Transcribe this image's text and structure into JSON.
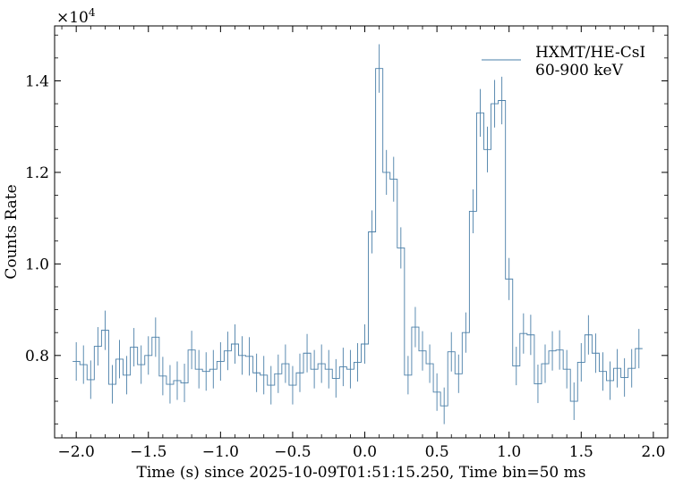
{
  "chart_data": {
    "type": "line",
    "style": "step-histogram-with-errorbars",
    "xlabel": "Time (s) since 2025-10-09T01:51:15.250, Time bin=50 ms",
    "ylabel": "Counts Rate",
    "y_multiplier_base": "×10",
    "y_multiplier_exp": "4",
    "y_scale_factor": 10000,
    "xlim": [
      -2.15,
      2.1
    ],
    "ylim": [
      0.62,
      1.52
    ],
    "xticks": [
      -2.0,
      -1.5,
      -1.0,
      -0.5,
      0.0,
      0.5,
      1.0,
      1.5,
      2.0
    ],
    "xtick_labels": [
      "−2.0",
      "−1.5",
      "−1.0",
      "−0.5",
      "0.0",
      "0.5",
      "1.0",
      "1.5",
      "2.0"
    ],
    "yticks": [
      0.8,
      1.0,
      1.2,
      1.4
    ],
    "ytick_labels": [
      "0.8",
      "1.0",
      "1.2",
      "1.4"
    ],
    "bin_width": 0.05,
    "legend_position": "top-right",
    "series": [
      {
        "name": "HXMT/HE-CsI",
        "name_line2": "60-900 keV",
        "color": "#4a7fa8",
        "x": [
          -2.0,
          -1.95,
          -1.9,
          -1.85,
          -1.8,
          -1.75,
          -1.7,
          -1.65,
          -1.6,
          -1.55,
          -1.5,
          -1.45,
          -1.4,
          -1.35,
          -1.3,
          -1.25,
          -1.2,
          -1.15,
          -1.1,
          -1.05,
          -1.0,
          -0.95,
          -0.9,
          -0.85,
          -0.8,
          -0.75,
          -0.7,
          -0.65,
          -0.6,
          -0.55,
          -0.5,
          -0.45,
          -0.4,
          -0.35,
          -0.3,
          -0.25,
          -0.2,
          -0.15,
          -0.1,
          -0.05,
          0.0,
          0.05,
          0.1,
          0.15,
          0.2,
          0.25,
          0.3,
          0.35,
          0.4,
          0.45,
          0.5,
          0.55,
          0.6,
          0.65,
          0.7,
          0.75,
          0.8,
          0.85,
          0.9,
          0.95,
          1.0,
          1.05,
          1.1,
          1.15,
          1.2,
          1.25,
          1.3,
          1.35,
          1.4,
          1.45,
          1.5,
          1.55,
          1.6,
          1.65,
          1.7,
          1.75,
          1.8,
          1.85,
          1.9
        ],
        "y": [
          0.787,
          0.78,
          0.747,
          0.82,
          0.855,
          0.737,
          0.792,
          0.757,
          0.818,
          0.78,
          0.8,
          0.84,
          0.755,
          0.737,
          0.745,
          0.74,
          0.812,
          0.77,
          0.765,
          0.77,
          0.787,
          0.81,
          0.825,
          0.8,
          0.798,
          0.762,
          0.757,
          0.735,
          0.76,
          0.782,
          0.735,
          0.762,
          0.805,
          0.77,
          0.782,
          0.77,
          0.75,
          0.775,
          0.77,
          0.785,
          0.825,
          1.07,
          1.427,
          1.2,
          1.185,
          1.035,
          0.757,
          0.862,
          0.81,
          0.782,
          0.72,
          0.69,
          0.808,
          0.76,
          0.85,
          1.115,
          1.33,
          1.25,
          1.35,
          1.357,
          0.967,
          0.777,
          0.848,
          0.845,
          0.738,
          0.782,
          0.81,
          0.812,
          0.77,
          0.7,
          0.785,
          0.845,
          0.805,
          0.765,
          0.745,
          0.772,
          0.752,
          0.772,
          0.815
        ],
        "err": [
          0.042,
          0.042,
          0.042,
          0.042,
          0.043,
          0.042,
          0.042,
          0.042,
          0.042,
          0.042,
          0.042,
          0.043,
          0.042,
          0.042,
          0.042,
          0.042,
          0.042,
          0.042,
          0.042,
          0.042,
          0.042,
          0.042,
          0.043,
          0.042,
          0.042,
          0.042,
          0.042,
          0.042,
          0.042,
          0.042,
          0.042,
          0.042,
          0.042,
          0.042,
          0.042,
          0.042,
          0.042,
          0.042,
          0.042,
          0.042,
          0.043,
          0.047,
          0.053,
          0.049,
          0.049,
          0.045,
          0.042,
          0.044,
          0.043,
          0.042,
          0.041,
          0.04,
          0.043,
          0.042,
          0.044,
          0.048,
          0.052,
          0.05,
          0.052,
          0.052,
          0.046,
          0.042,
          0.044,
          0.044,
          0.042,
          0.042,
          0.043,
          0.043,
          0.042,
          0.041,
          0.042,
          0.043,
          0.043,
          0.042,
          0.042,
          0.042,
          0.042,
          0.042,
          0.043
        ]
      }
    ]
  }
}
